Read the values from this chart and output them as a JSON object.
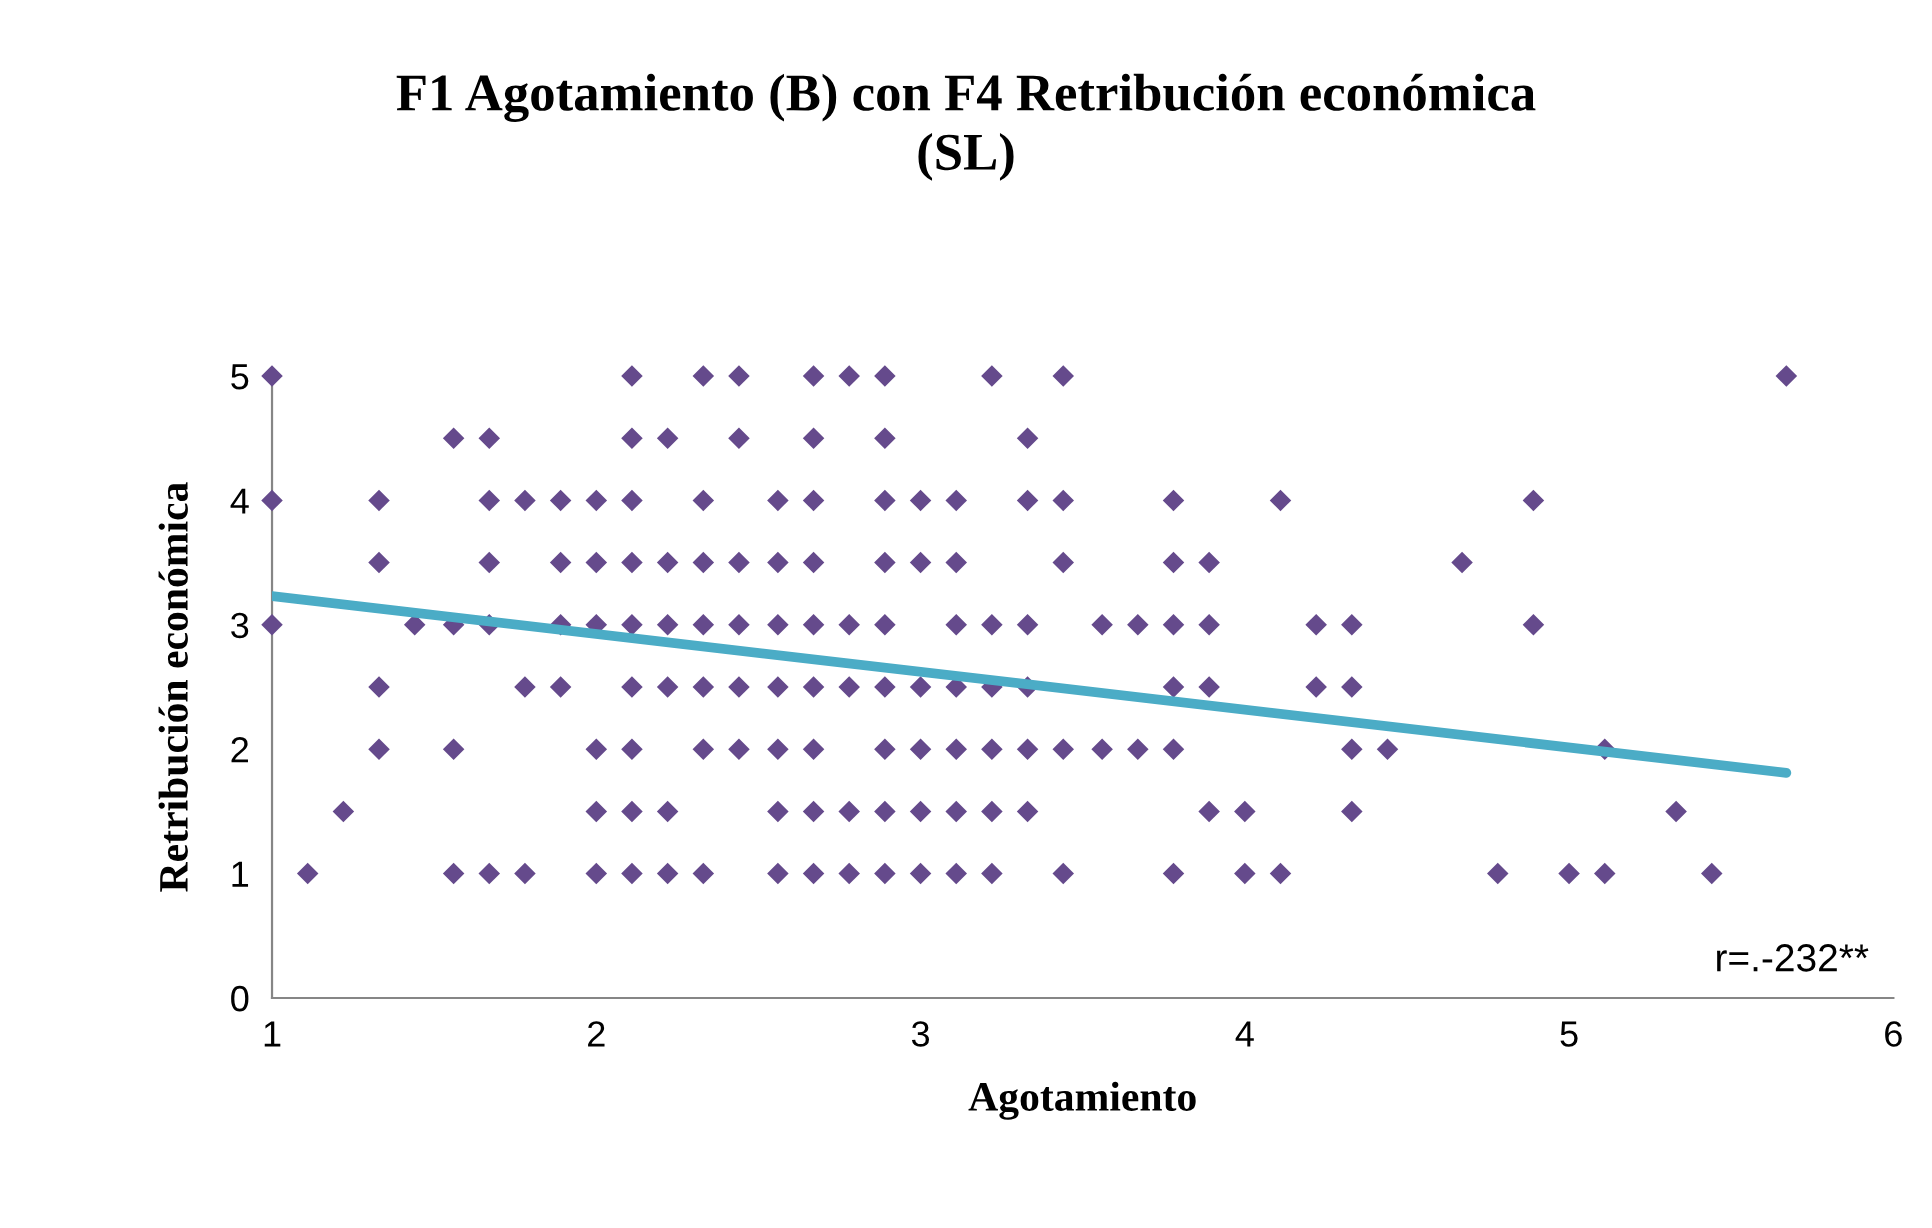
{
  "chart_data": {
    "type": "scatter",
    "title": "F1 Agotamiento (B) con F4 Retribución económica\n(SL)",
    "xlabel": "Agotamiento",
    "ylabel": "Retribución económica",
    "xlim": [
      1,
      6
    ],
    "xticks": [
      1,
      2,
      3,
      4,
      5,
      6
    ],
    "ylim": [
      0,
      5
    ],
    "yticks": [
      0,
      1,
      2,
      3,
      4,
      5
    ],
    "grid": false,
    "annotations": [
      "r=.-232**"
    ],
    "series": [
      {
        "color": "#654a8c",
        "marker": "diamond",
        "x": [
          1,
          2.11,
          2.33,
          2.44,
          2.67,
          2.78,
          2.89,
          3.22,
          3.44,
          5.67,
          1.56,
          1.67,
          2.11,
          2.22,
          2.44,
          2.67,
          2.89,
          3.33,
          1,
          1.33,
          1.67,
          1.78,
          1.89,
          2,
          2.11,
          2.33,
          2.56,
          2.67,
          2.89,
          3,
          3.11,
          3.33,
          3.44,
          3.78,
          4.11,
          4.89,
          1.33,
          1.67,
          1.89,
          2,
          2.11,
          2.22,
          2.33,
          2.44,
          2.56,
          2.67,
          2.89,
          3,
          3.11,
          3.44,
          3.78,
          3.89,
          4.67,
          1,
          1.44,
          1.56,
          1.67,
          1.89,
          2,
          2.11,
          2.22,
          2.33,
          2.44,
          2.56,
          2.67,
          2.78,
          2.89,
          3.11,
          3.22,
          3.33,
          3.56,
          3.67,
          3.78,
          3.89,
          4.22,
          4.33,
          4.89,
          1.33,
          1.78,
          1.89,
          2.11,
          2.22,
          2.33,
          2.44,
          2.56,
          2.67,
          2.78,
          2.89,
          3,
          3.11,
          3.22,
          3.33,
          3.78,
          3.89,
          4.22,
          4.33,
          1.33,
          1.56,
          2,
          2.11,
          2.33,
          2.44,
          2.56,
          2.67,
          2.89,
          3,
          3.11,
          3.22,
          3.33,
          3.44,
          3.56,
          3.67,
          3.78,
          4.33,
          4.44,
          5.11,
          1.22,
          2,
          2.11,
          2.22,
          2.56,
          2.67,
          2.78,
          2.89,
          3,
          3.11,
          3.22,
          3.33,
          3.89,
          4,
          4.33,
          5.33,
          1.11,
          1.56,
          1.67,
          1.78,
          2,
          2.11,
          2.22,
          2.33,
          2.56,
          2.67,
          2.78,
          2.89,
          3,
          3.11,
          3.22,
          3.44,
          3.78,
          4,
          4.11,
          4.78,
          5,
          5.11,
          5.44
        ],
        "values": [
          5,
          5,
          5,
          5,
          5,
          5,
          5,
          5,
          5,
          5,
          4.5,
          4.5,
          4.5,
          4.5,
          4.5,
          4.5,
          4.5,
          4.5,
          4,
          4,
          4,
          4,
          4,
          4,
          4,
          4,
          4,
          4,
          4,
          4,
          4,
          4,
          4,
          4,
          4,
          4,
          3.5,
          3.5,
          3.5,
          3.5,
          3.5,
          3.5,
          3.5,
          3.5,
          3.5,
          3.5,
          3.5,
          3.5,
          3.5,
          3.5,
          3.5,
          3.5,
          3.5,
          3,
          3,
          3,
          3,
          3,
          3,
          3,
          3,
          3,
          3,
          3,
          3,
          3,
          3,
          3,
          3,
          3,
          3,
          3,
          3,
          3,
          3,
          3,
          3,
          2.5,
          2.5,
          2.5,
          2.5,
          2.5,
          2.5,
          2.5,
          2.5,
          2.5,
          2.5,
          2.5,
          2.5,
          2.5,
          2.5,
          2.5,
          2.5,
          2.5,
          2.5,
          2.5,
          2,
          2,
          2,
          2,
          2,
          2,
          2,
          2,
          2,
          2,
          2,
          2,
          2,
          2,
          2,
          2,
          2,
          2,
          2,
          2,
          1.5,
          1.5,
          1.5,
          1.5,
          1.5,
          1.5,
          1.5,
          1.5,
          1.5,
          1.5,
          1.5,
          1.5,
          1.5,
          1.5,
          1.5,
          1.5,
          1,
          1,
          1,
          1,
          1,
          1,
          1,
          1,
          1,
          1,
          1,
          1,
          1,
          1,
          1,
          1,
          1,
          1,
          1,
          1,
          1,
          1,
          1
        ]
      },
      {
        "type": "line",
        "marker": "none",
        "color": "#4bacc6",
        "x": [
          1,
          5.67
        ],
        "values": [
          3.23,
          1.81
        ]
      }
    ]
  }
}
